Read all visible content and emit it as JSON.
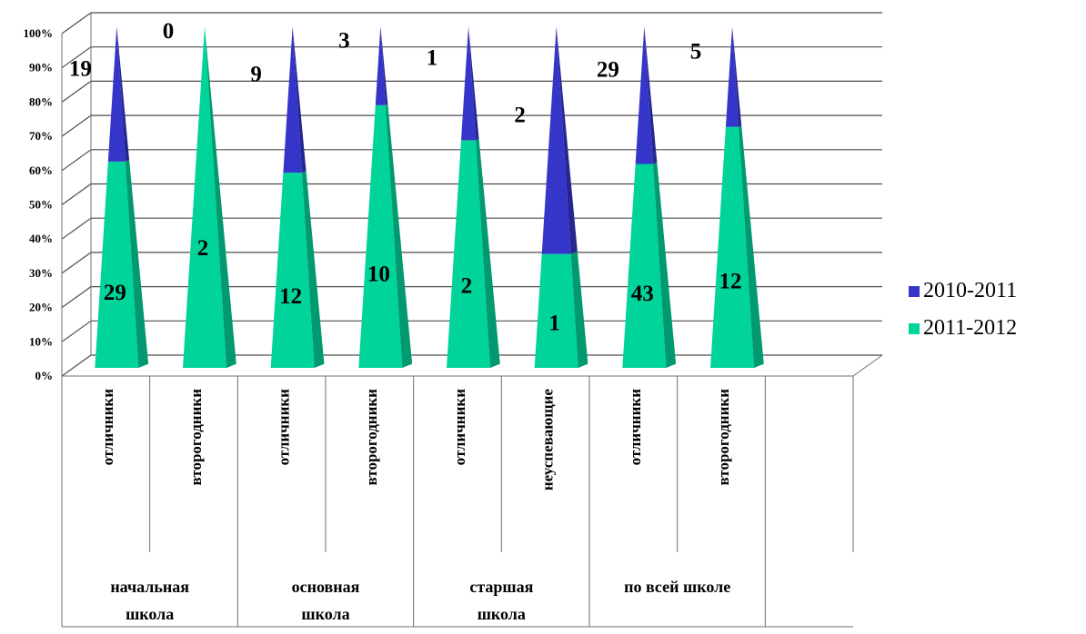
{
  "colors": {
    "series_2010_2011": "#3535c9",
    "series_2011_2012": "#00d49b",
    "grid": "#4d4d4d"
  },
  "chart_data": {
    "type": "bar",
    "stacking": "percent",
    "bar_shape": "pyramid-3d",
    "groups": [
      "начальная школа",
      "основная школа",
      "старшая школа",
      "по всей школе"
    ],
    "categories": [
      "отличники",
      "второгодники",
      "отличники",
      "второгодники",
      "отличники",
      "неуспевающие",
      "отличники",
      "второгодники"
    ],
    "category_group_index": [
      0,
      0,
      1,
      1,
      2,
      2,
      3,
      3
    ],
    "series": [
      {
        "name": "2011-2012",
        "values": [
          29,
          2,
          12,
          10,
          2,
          1,
          43,
          12
        ]
      },
      {
        "name": "2010-2011",
        "values": [
          19,
          0,
          9,
          3,
          1,
          2,
          29,
          5
        ]
      }
    ],
    "ylim": [
      0,
      100
    ],
    "yticks": [
      "0%",
      "10%",
      "20%",
      "30%",
      "40%",
      "50%",
      "60%",
      "70%",
      "80%",
      "90%",
      "100%"
    ],
    "grid": true,
    "legend_position": "right",
    "legend_entries": [
      "2010-2011",
      "2011-2012"
    ]
  }
}
